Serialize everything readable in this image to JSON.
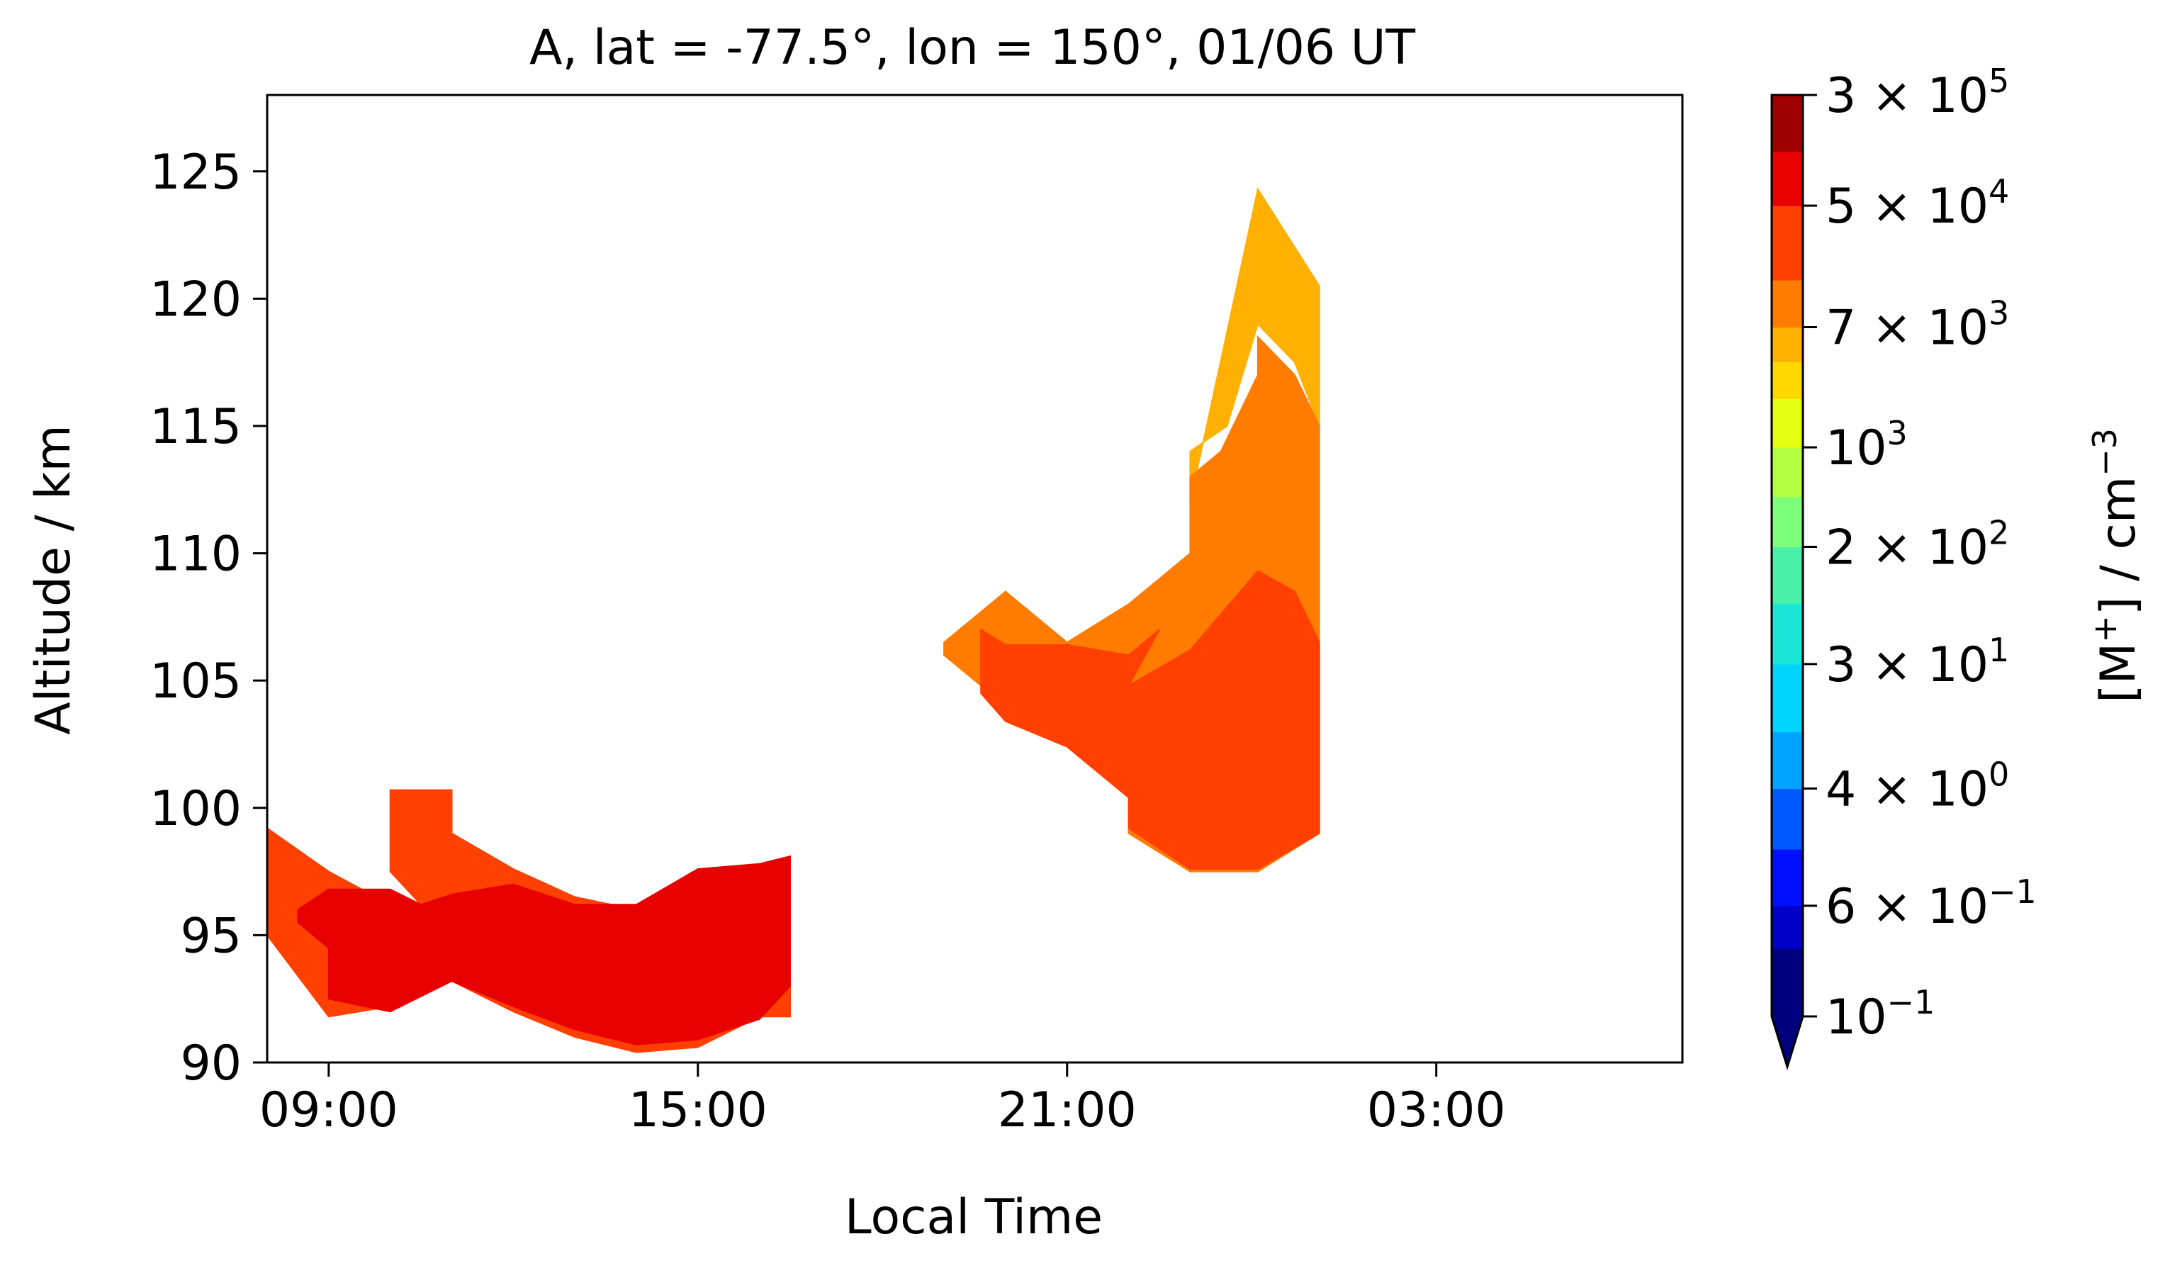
{
  "chart_data": {
    "type": "heatmap",
    "title": "A, lat = -77.5°, lon = 150°, 01/06 UT",
    "xlabel": "Local Time",
    "ylabel": "Altitude / km",
    "colorbar_label_main": "[M",
    "colorbar_label_sup": "+",
    "colorbar_label_tail": "] / cm",
    "colorbar_label_exp": "−3",
    "x_axis": {
      "unit": "hours since 08:00 local time",
      "range": [
        0,
        23
      ],
      "tick_labels": [
        "09:00",
        "15:00",
        "21:00",
        "03:00"
      ],
      "tick_values": [
        1,
        7,
        13,
        19
      ]
    },
    "y_axis": {
      "range": [
        90,
        128
      ],
      "ticks": [
        90,
        95,
        100,
        105,
        110,
        115,
        120,
        125
      ]
    },
    "colorbar": {
      "scale": "log",
      "range": [
        0.1,
        300000
      ],
      "extend": "min",
      "levels": [
        {
          "from": 0.1,
          "to": 0.3,
          "color": "#00007f"
        },
        {
          "from": 0.3,
          "to": 0.6,
          "color": "#0000c8"
        },
        {
          "from": 0.6,
          "to": 1.5,
          "color": "#0010ff"
        },
        {
          "from": 1.5,
          "to": 4,
          "color": "#0058ff"
        },
        {
          "from": 4,
          "to": 10,
          "color": "#00a4ff"
        },
        {
          "from": 10,
          "to": 30,
          "color": "#00d4ff"
        },
        {
          "from": 30,
          "to": 80,
          "color": "#1ce6d8"
        },
        {
          "from": 80,
          "to": 200,
          "color": "#48f0a8"
        },
        {
          "from": 200,
          "to": 450,
          "color": "#7cff7a"
        },
        {
          "from": 450,
          "to": 1000,
          "color": "#b4ff42"
        },
        {
          "from": 1000,
          "to": 2200,
          "color": "#e4ff12"
        },
        {
          "from": 2200,
          "to": 4000,
          "color": "#ffd800"
        },
        {
          "from": 4000,
          "to": 7000,
          "color": "#ffb000"
        },
        {
          "from": 7000,
          "to": 15000,
          "color": "#ff7c00"
        },
        {
          "from": 15000,
          "to": 50000,
          "color": "#ff4000"
        },
        {
          "from": 50000,
          "to": 120000,
          "color": "#e80000"
        },
        {
          "from": 120000,
          "to": 300000,
          "color": "#a00000"
        }
      ],
      "tick_values": [
        0.1,
        0.6,
        4,
        30,
        200,
        1000,
        7000,
        50000,
        300000
      ],
      "tick_labels": [
        {
          "mant": "",
          "base": "10",
          "exp": "−1"
        },
        {
          "mant": "6 × ",
          "base": "10",
          "exp": "−1"
        },
        {
          "mant": "4 × ",
          "base": "10",
          "exp": "0"
        },
        {
          "mant": "3 × ",
          "base": "10",
          "exp": "1"
        },
        {
          "mant": "2 × ",
          "base": "10",
          "exp": "2"
        },
        {
          "mant": "",
          "base": "10",
          "exp": "3"
        },
        {
          "mant": "7 × ",
          "base": "10",
          "exp": "3"
        },
        {
          "mant": "5 × ",
          "base": "10",
          "exp": "4"
        },
        {
          "mant": "3 × ",
          "base": "10",
          "exp": "5"
        }
      ]
    },
    "regions": [
      {
        "name": "level-4000-7000",
        "color": "#ffb000",
        "points": [
          [
            16.1,
            124.3
          ],
          [
            17.1,
            120.5
          ],
          [
            17.1,
            115
          ],
          [
            16.7,
            117.5
          ],
          [
            16.1,
            119
          ],
          [
            15.6,
            115
          ],
          [
            15,
            114
          ],
          [
            15,
            112
          ]
        ]
      },
      {
        "name": "level-7000-15000",
        "color": "#ff7c00",
        "points": [
          [
            16.1,
            118.5
          ],
          [
            16.7,
            117
          ],
          [
            17.1,
            115
          ],
          [
            17.1,
            99
          ],
          [
            16.1,
            97.5
          ],
          [
            15,
            97.5
          ],
          [
            14,
            99
          ],
          [
            14,
            100.5
          ],
          [
            13,
            102.5
          ],
          [
            12,
            104
          ],
          [
            11,
            106
          ],
          [
            11,
            106.5
          ],
          [
            12,
            108.5
          ],
          [
            13,
            106.5
          ],
          [
            14,
            108
          ],
          [
            15,
            110
          ],
          [
            15,
            113
          ],
          [
            15.5,
            114
          ],
          [
            16.1,
            117
          ]
        ]
      },
      {
        "name": "level-7000-15000-left",
        "color": "#ff7c00",
        "points": [
          [
            0,
            99.2
          ],
          [
            0,
            96.2
          ],
          [
            1,
            95.5
          ],
          [
            2,
            95
          ],
          [
            3,
            95.5
          ],
          [
            4,
            97.5
          ],
          [
            3,
            96.8
          ],
          [
            2,
            95.5
          ],
          [
            1,
            95.2
          ]
        ]
      },
      {
        "name": "level-15000-50000-upper",
        "color": "#ff4000",
        "points": [
          [
            14,
            104.8
          ],
          [
            15,
            106.2
          ],
          [
            16.1,
            109.3
          ],
          [
            16.7,
            108.5
          ],
          [
            17.1,
            106.5
          ],
          [
            17.1,
            99
          ],
          [
            16.1,
            97.6
          ],
          [
            15,
            97.6
          ],
          [
            14,
            99.2
          ],
          [
            14,
            100.4
          ],
          [
            13,
            102.4
          ],
          [
            12,
            103.4
          ],
          [
            11.6,
            104.5
          ],
          [
            11.6,
            107
          ],
          [
            12,
            106.4
          ],
          [
            13,
            106.4
          ],
          [
            14,
            106
          ],
          [
            14.5,
            107
          ]
        ]
      },
      {
        "name": "level-15000-50000-mid",
        "color": "#ff4000",
        "points": [
          [
            0,
            99.2
          ],
          [
            1,
            97.5
          ],
          [
            2,
            96.2
          ],
          [
            2.5,
            96.2
          ],
          [
            2,
            97.5
          ],
          [
            2,
            100.7
          ],
          [
            3,
            100.7
          ],
          [
            3,
            99
          ],
          [
            4,
            97.6
          ],
          [
            5,
            96.5
          ],
          [
            6,
            96
          ],
          [
            7,
            97.5
          ],
          [
            8,
            97.5
          ],
          [
            8.5,
            98
          ],
          [
            8.5,
            91.8
          ],
          [
            8,
            91.8
          ],
          [
            7,
            90.6
          ],
          [
            6,
            90.4
          ],
          [
            5,
            91
          ],
          [
            4,
            92
          ],
          [
            3,
            93.2
          ],
          [
            2,
            92.2
          ],
          [
            1,
            91.8
          ],
          [
            0,
            95
          ],
          [
            0,
            96.2
          ]
        ]
      },
      {
        "name": "level-50000-120000",
        "color": "#e80000",
        "points": [
          [
            0.5,
            96
          ],
          [
            1,
            96.8
          ],
          [
            2,
            96.8
          ],
          [
            2.5,
            96.2
          ],
          [
            3,
            96.6
          ],
          [
            4,
            97
          ],
          [
            5,
            96.2
          ],
          [
            6,
            96.2
          ],
          [
            7,
            97.6
          ],
          [
            8,
            97.8
          ],
          [
            8.5,
            98.1
          ],
          [
            8.5,
            93
          ],
          [
            8,
            91.7
          ],
          [
            7,
            90.9
          ],
          [
            6,
            90.7
          ],
          [
            5,
            91.3
          ],
          [
            4,
            92.2
          ],
          [
            3,
            93.2
          ],
          [
            2,
            92
          ],
          [
            1,
            92.5
          ],
          [
            1,
            94.5
          ],
          [
            0.5,
            95.5
          ]
        ]
      }
    ]
  }
}
